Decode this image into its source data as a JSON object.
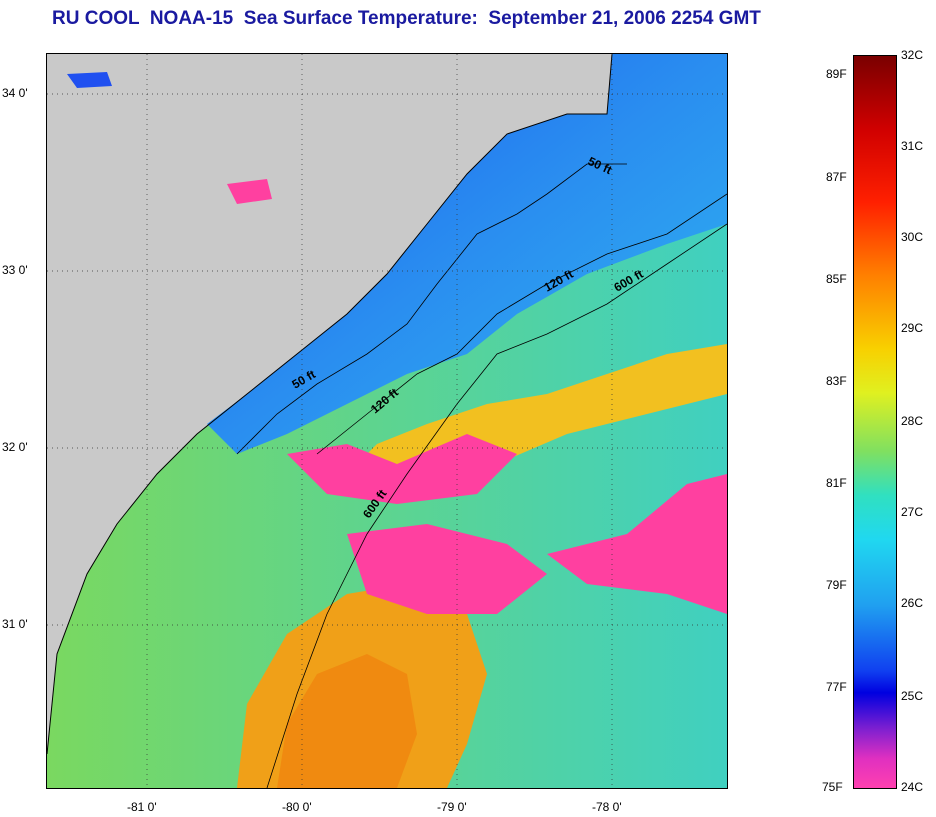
{
  "title": "RU COOL  NOAA-15  Sea Surface Temperature:  September 21, 2006 2254 GMT",
  "map": {
    "lat_labels": [
      "34 0'",
      "33 0'",
      "32 0'",
      "31 0'"
    ],
    "lon_labels": [
      "-81 0'",
      "-80 0'",
      "-79 0'",
      "-78 0'"
    ],
    "contour_labels": [
      "50 ft",
      "120 ft",
      "600 ft",
      "50 ft",
      "120 ft",
      "600 ft"
    ],
    "colors": {
      "land": "#c9c9c9",
      "cold_water": "#1e6ef0",
      "mid_water": "#28c8e8",
      "warm_water": "#9ee040",
      "hot_water": "#f0a020",
      "cloud": "#ff40a0"
    }
  },
  "colorbar": {
    "celsius": [
      "32C",
      "31C",
      "30C",
      "29C",
      "28C",
      "27C",
      "26C",
      "25C",
      "24C"
    ],
    "fahrenheit": [
      "89F",
      "87F",
      "85F",
      "83F",
      "81F",
      "79F",
      "77F",
      "75F"
    ],
    "celsius_range": [
      24,
      32
    ],
    "fahrenheit_range": [
      75,
      89.6
    ]
  }
}
